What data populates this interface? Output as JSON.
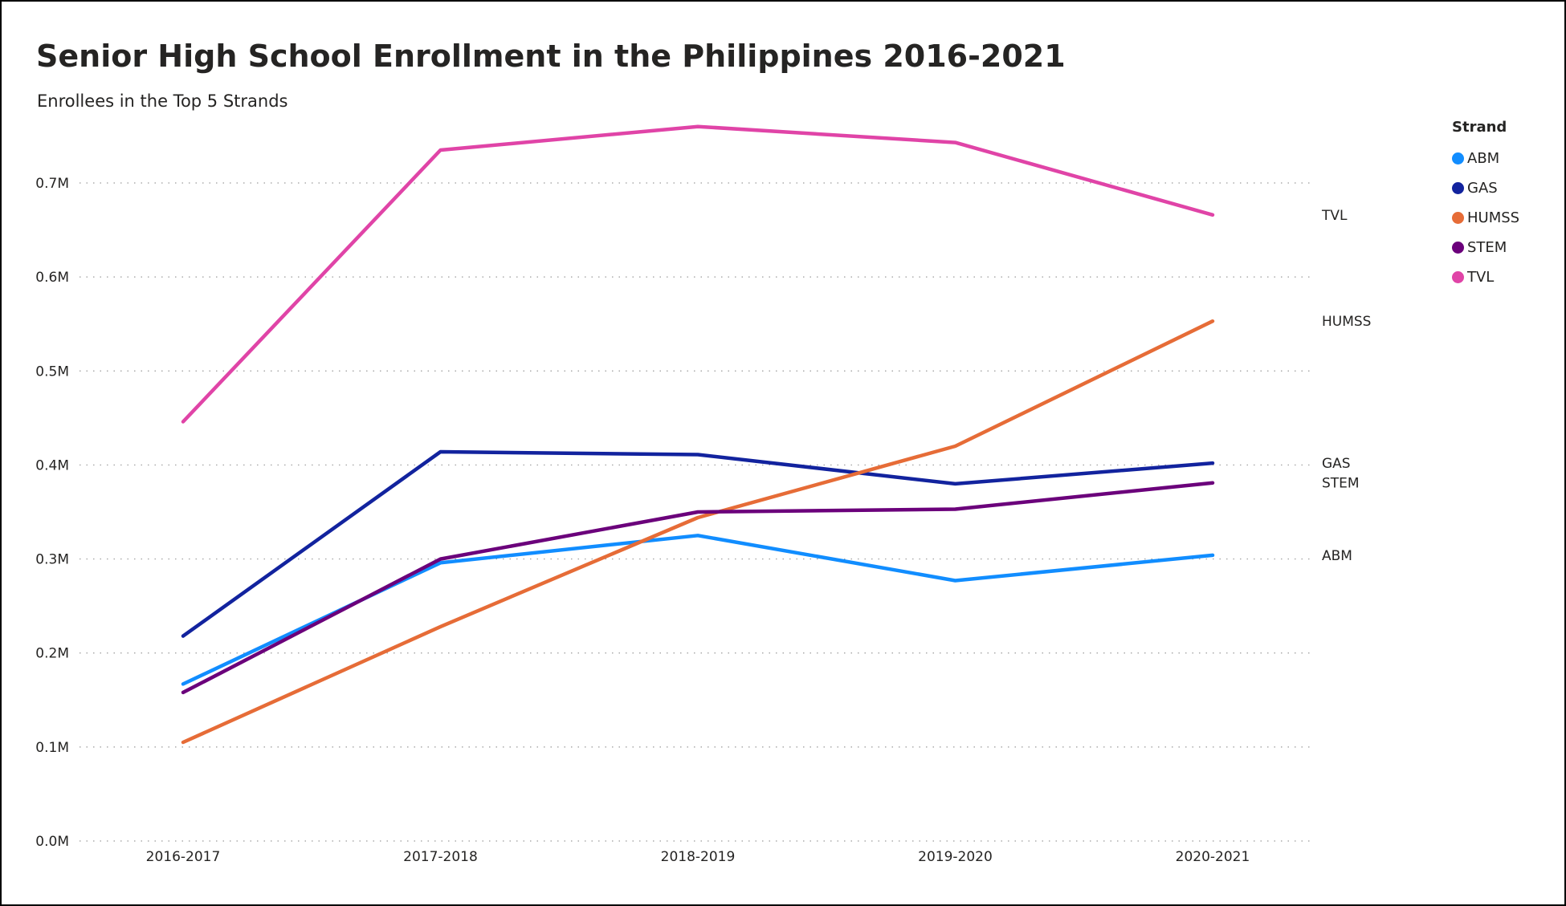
{
  "header": {
    "title": "Senior High School Enrollment in the Philippines 2016-2021",
    "subtitle": "Enrollees in the Top 5 Strands"
  },
  "legend": {
    "title": "Strand",
    "position": "top-right"
  },
  "chart_data": {
    "type": "line",
    "title": "Senior High School Enrollment in the Philippines 2016-2021",
    "subtitle": "Enrollees in the Top 5 Strands",
    "xlabel": "",
    "ylabel": "",
    "categories": [
      "2016-2017",
      "2017-2018",
      "2018-2019",
      "2019-2020",
      "2020-2021"
    ],
    "ylim": [
      0,
      750000
    ],
    "yticks": [
      0,
      100000,
      200000,
      300000,
      400000,
      500000,
      600000,
      700000
    ],
    "ytick_labels": [
      "0.0M",
      "0.1M",
      "0.2M",
      "0.3M",
      "0.4M",
      "0.5M",
      "0.6M",
      "0.7M"
    ],
    "grid": "horizontal dotted",
    "series": [
      {
        "name": "ABM",
        "color": "#118DFF",
        "values": [
          167000,
          296000,
          325000,
          277000,
          304000
        ]
      },
      {
        "name": "GAS",
        "color": "#12239E",
        "values": [
          218000,
          414000,
          411000,
          380000,
          402000
        ]
      },
      {
        "name": "HUMSS",
        "color": "#E66C37",
        "values": [
          105000,
          228000,
          344000,
          420000,
          553000
        ]
      },
      {
        "name": "STEM",
        "color": "#6B007B",
        "values": [
          158000,
          300000,
          350000,
          353000,
          381000
        ]
      },
      {
        "name": "TVL",
        "color": "#E044A7",
        "values": [
          446000,
          735000,
          760000,
          743000,
          666000
        ]
      }
    ],
    "end_labels": [
      {
        "series": "TVL",
        "text": "TVL"
      },
      {
        "series": "HUMSS",
        "text": "HUMSS"
      },
      {
        "series": "GAS",
        "text": "GAS"
      },
      {
        "series": "STEM",
        "text": "STEM"
      },
      {
        "series": "ABM",
        "text": "ABM"
      }
    ]
  }
}
